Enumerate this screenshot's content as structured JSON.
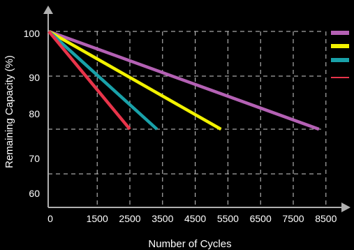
{
  "chart_data": {
    "type": "line",
    "xlabel": "Number of Cycles",
    "ylabel": "Remaining Capacity (%)",
    "xlim": [
      0,
      9000
    ],
    "ylim": [
      55,
      104
    ],
    "x_ticks": [
      0,
      1500,
      2500,
      3500,
      4500,
      5500,
      6500,
      7500,
      8500
    ],
    "x_tick_labels": [
      "0",
      "1500",
      "2500",
      "3500",
      "4500",
      "5500",
      "6500",
      "7500",
      "8500"
    ],
    "y_ticks": [
      60,
      70,
      80,
      90,
      100
    ],
    "y_tick_labels": [
      "60",
      "70",
      "80",
      "90",
      "100"
    ],
    "grid": true,
    "grid_style": "dashed",
    "legend_position": "top-right",
    "series": [
      {
        "color": "#b461b4",
        "points": [
          [
            0,
            101
          ],
          [
            8500,
            80
          ]
        ]
      },
      {
        "color": "#f2f200",
        "points": [
          [
            0,
            101
          ],
          [
            5500,
            80
          ]
        ]
      },
      {
        "color": "#19a1a9",
        "points": [
          [
            0,
            101
          ],
          [
            3500,
            80
          ]
        ]
      },
      {
        "color": "#e8344a",
        "points": [
          [
            0,
            101
          ],
          [
            2500,
            80
          ]
        ]
      }
    ],
    "colors": {
      "background": "#000000",
      "axis": "#b0b0b0",
      "grid": "#d0d0d0",
      "text": "#ffffff"
    }
  }
}
